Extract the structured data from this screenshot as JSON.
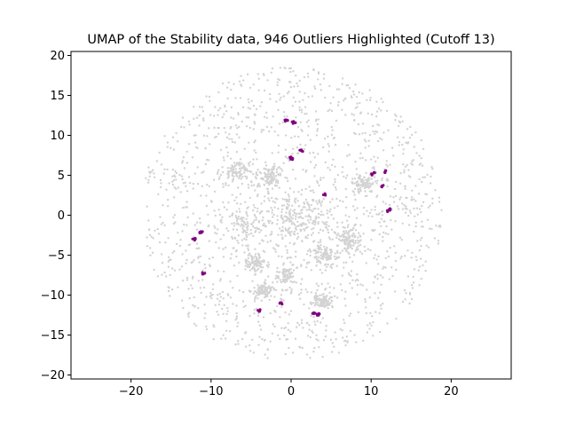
{
  "chart_data": {
    "type": "scatter",
    "title": "UMAP of the Stability data, 946 Outliers Highlighted (Cutoff 13)",
    "xlabel": "",
    "ylabel": "",
    "xlim": [
      -27.5,
      27.5
    ],
    "ylim": [
      -20.5,
      20.5
    ],
    "x_ticks": [
      -20,
      -10,
      0,
      10,
      20
    ],
    "y_ticks": [
      -20,
      -15,
      -10,
      -5,
      0,
      5,
      10,
      15,
      20
    ],
    "x_tick_labels": [
      "−20",
      "−10",
      "0",
      "10",
      "20"
    ],
    "y_tick_labels": [
      "−20",
      "−15",
      "−10",
      "−5",
      "0",
      "5",
      "10",
      "15",
      "20"
    ],
    "grid": false,
    "legend": "none",
    "series": [
      {
        "role": "inliers",
        "color": "#d3d3d3",
        "distribution": "dense disk centered near (0, 0) with radius about 19; densest core within radius about 9",
        "x_range": [
          -19,
          19
        ],
        "y_range": [
          -18.5,
          19
        ]
      },
      {
        "role": "outliers",
        "color": "#800080",
        "count": 946,
        "clusters": [
          {
            "x": -0.6,
            "y": 11.9
          },
          {
            "x": 0.4,
            "y": 11.6
          },
          {
            "x": 0.2,
            "y": 7.1
          },
          {
            "x": 1.3,
            "y": 8.1
          },
          {
            "x": 10.2,
            "y": 5.2
          },
          {
            "x": 11.7,
            "y": 5.4
          },
          {
            "x": 11.5,
            "y": 3.6
          },
          {
            "x": 12.2,
            "y": 0.6
          },
          {
            "x": 4.2,
            "y": 2.6
          },
          {
            "x": -11.2,
            "y": -2.1
          },
          {
            "x": -12.0,
            "y": -3.0
          },
          {
            "x": -11.0,
            "y": -7.3
          },
          {
            "x": -1.2,
            "y": -11.0
          },
          {
            "x": -4.0,
            "y": -12.0
          },
          {
            "x": 2.8,
            "y": -12.3
          },
          {
            "x": 3.4,
            "y": -12.4
          }
        ]
      }
    ]
  }
}
